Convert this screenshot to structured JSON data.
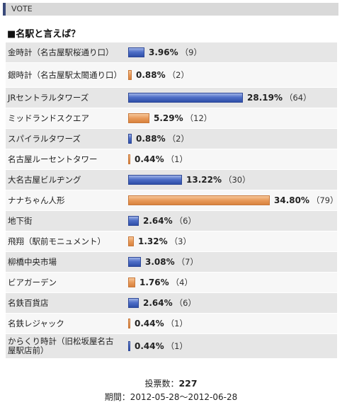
{
  "header": {
    "label": "VOTE"
  },
  "question": "■名駅と言えば？",
  "chart_data": {
    "type": "bar",
    "orientation": "horizontal",
    "categories": [
      "金時計（名古屋駅桜通り口）",
      "銀時計（名古屋駅太閤通り口）",
      "JRセントラルタワーズ",
      "ミッドランドスクエア",
      "スパイラルタワーズ",
      "名古屋ルーセントタワー",
      "大名古屋ビルヂング",
      "ナナちゃん人形",
      "地下街",
      "飛翔（駅前モニュメント）",
      "柳橋中央市場",
      "ビアガーデン",
      "名鉄百貨店",
      "名鉄レジャック",
      "からくり時計（旧松坂屋名古屋駅店前）"
    ],
    "percent_labels": [
      "3.96%",
      "0.88%",
      "28.19%",
      "5.29%",
      "0.88%",
      "0.44%",
      "13.22%",
      "34.80%",
      "2.64%",
      "1.32%",
      "3.08%",
      "1.76%",
      "2.64%",
      "0.44%",
      "0.44%"
    ],
    "percents": [
      3.96,
      0.88,
      28.19,
      5.29,
      0.88,
      0.44,
      13.22,
      34.8,
      2.64,
      1.32,
      3.08,
      1.76,
      2.64,
      0.44,
      0.44
    ],
    "count_labels": [
      "（9）",
      "（2）",
      "（64）",
      "（12）",
      "（2）",
      "（1）",
      "（30）",
      "（79）",
      "（6）",
      "（3）",
      "（7）",
      "（4）",
      "（6）",
      "（1）",
      "（1）"
    ],
    "counts": [
      9,
      2,
      64,
      12,
      2,
      1,
      30,
      79,
      6,
      3,
      7,
      4,
      6,
      1,
      1
    ],
    "bar_colors": [
      "#3a5bbf",
      "#e8955a"
    ]
  },
  "footer": {
    "total_label": "投票数：",
    "total_value": "227",
    "period": "期間：2012-05-28～2012-06-28"
  }
}
